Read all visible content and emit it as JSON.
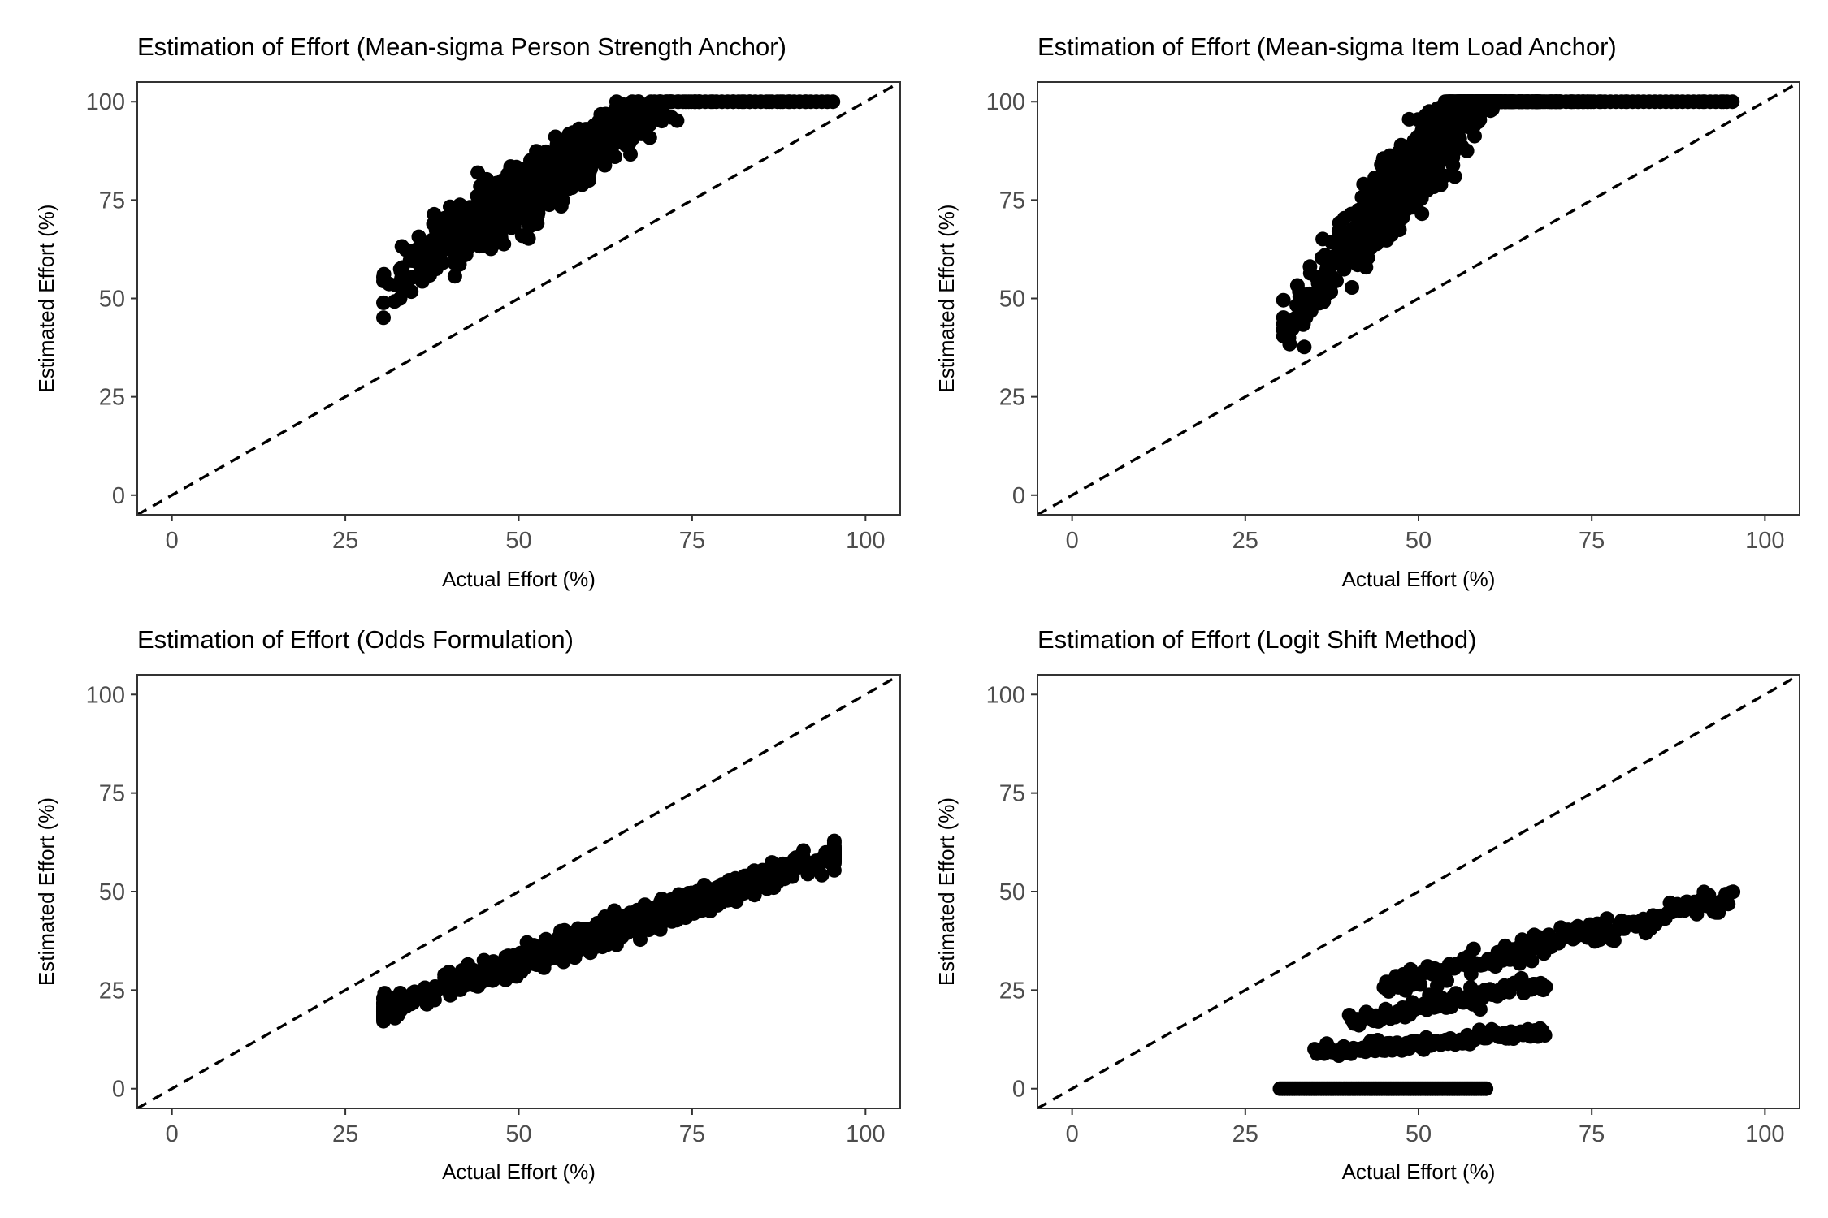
{
  "chart_data": [
    {
      "type": "scatter",
      "title": "Estimation of Effort (Mean-sigma Person Strength Anchor)",
      "xlabel": "Actual Effort (%)",
      "ylabel": "Estimated Effort (%)",
      "xlim": [
        -5,
        105
      ],
      "ylim": [
        -5,
        105
      ],
      "xticks": [
        "0",
        "25",
        "50",
        "75",
        "100"
      ],
      "yticks": [
        "0",
        "25",
        "50",
        "75",
        "100"
      ],
      "reference_line": "y = x (dashed)",
      "grid": false,
      "generator": {
        "kind": "linear",
        "slope": 1.2,
        "intercept": 16,
        "noise": 3.5,
        "cap": 100,
        "x_min": 30.5,
        "x_max": 95.5,
        "x_center": 52,
        "x_spread": 7
      }
    },
    {
      "type": "scatter",
      "title": "Estimation of Effort (Mean-sigma Item Load Anchor)",
      "xlabel": "Actual Effort (%)",
      "ylabel": "Estimated Effort (%)",
      "xlim": [
        -5,
        105
      ],
      "ylim": [
        -5,
        105
      ],
      "xticks": [
        "0",
        "25",
        "50",
        "75",
        "100"
      ],
      "yticks": [
        "0",
        "25",
        "50",
        "75",
        "100"
      ],
      "reference_line": "y = x (dashed)",
      "grid": false,
      "generator": {
        "kind": "linear",
        "slope": 2.2,
        "intercept": -25,
        "noise": 4.5,
        "cap": 100,
        "x_min": 30.5,
        "x_max": 95.5,
        "x_center": 52,
        "x_spread": 7
      }
    },
    {
      "type": "scatter",
      "title": "Estimation of Effort (Odds Formulation)",
      "xlabel": "Actual Effort (%)",
      "ylabel": "Estimated Effort (%)",
      "xlim": [
        -5,
        105
      ],
      "ylim": [
        -5,
        105
      ],
      "xticks": [
        "0",
        "25",
        "50",
        "75",
        "100"
      ],
      "yticks": [
        "0",
        "25",
        "50",
        "75",
        "100"
      ],
      "reference_line": "y = x (dashed)",
      "grid": false,
      "generator": {
        "kind": "linear",
        "slope": 0.6,
        "intercept": 2,
        "noise": 1.5,
        "cap": 100,
        "x_min": 30.5,
        "x_max": 95.5,
        "x_center": 65,
        "x_spread": 14
      }
    },
    {
      "type": "scatter",
      "title": "Estimation of Effort (Logit Shift Method)",
      "xlabel": "Actual Effort (%)",
      "ylabel": "Estimated Effort (%)",
      "xlim": [
        -5,
        105
      ],
      "ylim": [
        -5,
        105
      ],
      "xticks": [
        "0",
        "25",
        "50",
        "75",
        "100"
      ],
      "yticks": [
        "0",
        "25",
        "50",
        "75",
        "100"
      ],
      "reference_line": "y = x (dashed)",
      "grid": false,
      "generator": {
        "kind": "bands",
        "bands": [
          {
            "x_min": 30,
            "x_max": 60,
            "y_at_min": 0,
            "y_at_max": 0,
            "noise": 0
          },
          {
            "x_min": 35,
            "x_max": 68.5,
            "y_at_min": 9,
            "y_at_max": 14.5,
            "noise": 0.8
          },
          {
            "x_min": 40,
            "x_max": 68.5,
            "y_at_min": 17,
            "y_at_max": 27,
            "noise": 1.2
          },
          {
            "x_min": 45,
            "x_max": 95.5,
            "y_at_min": 26,
            "y_at_max": 49,
            "noise": 1.6
          }
        ]
      }
    }
  ]
}
